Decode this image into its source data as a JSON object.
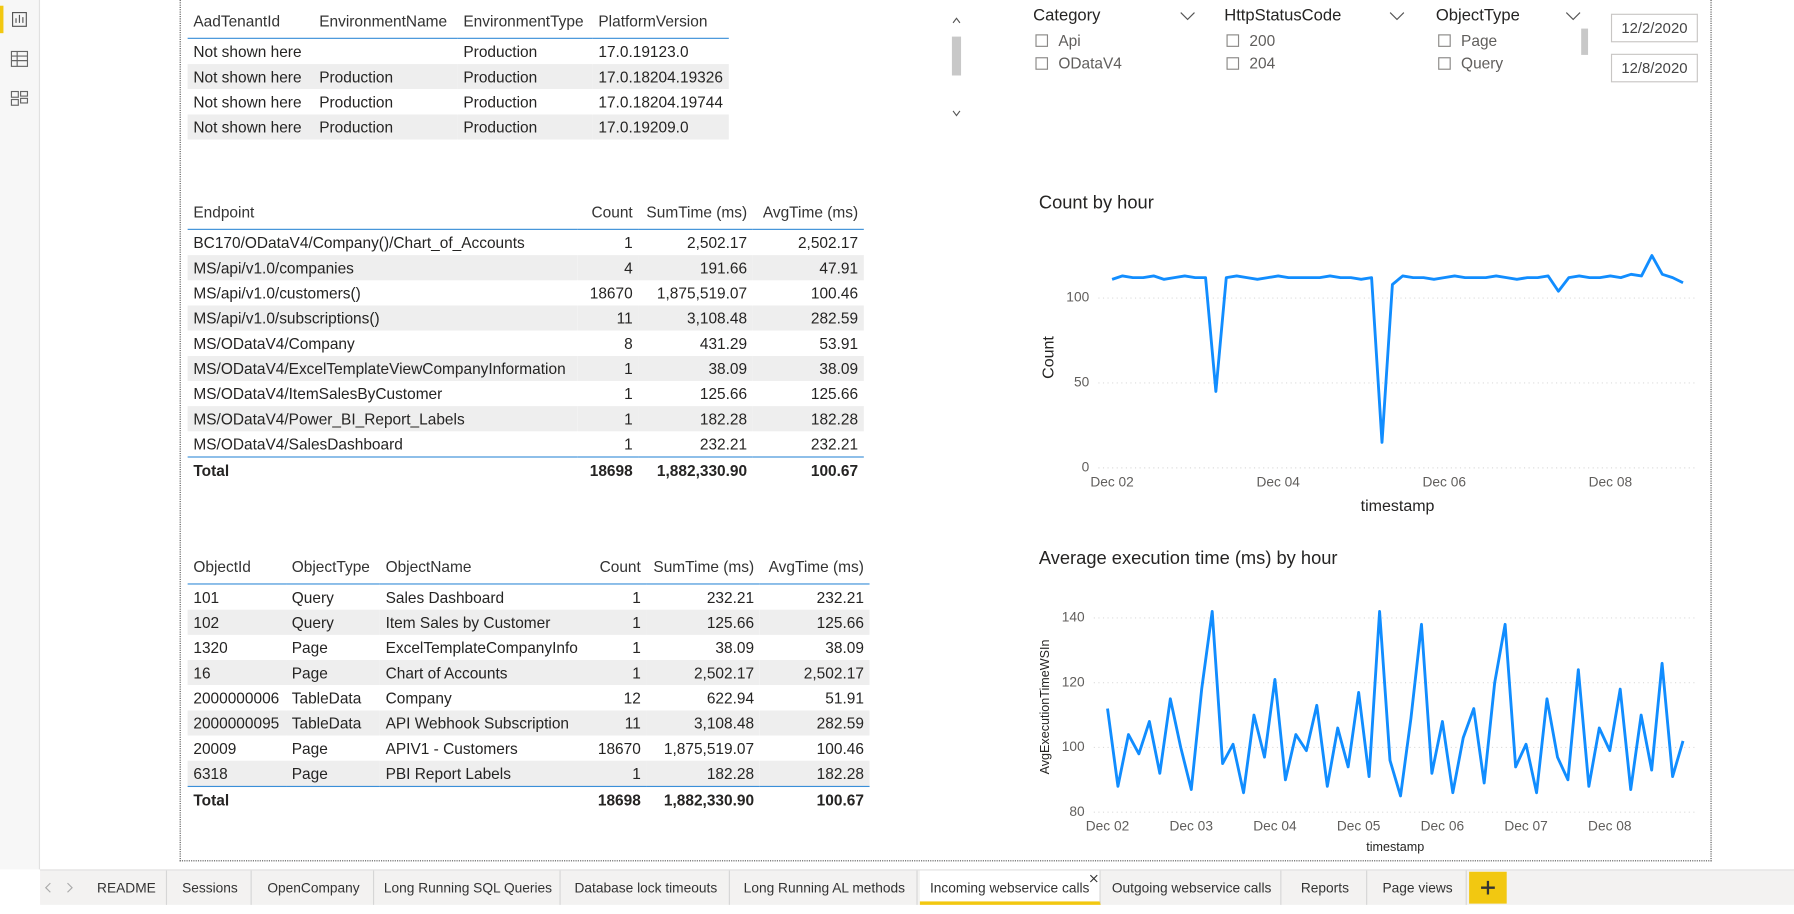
{
  "tables": [
    {
      "columns": [
        "AadTenantId",
        "EnvironmentName",
        "EnvironmentType",
        "PlatformVersion"
      ],
      "rows": [
        [
          "Not shown here",
          "",
          "Production",
          "17.0.19123.0"
        ],
        [
          "Not shown here",
          "Production",
          "Production",
          "17.0.18204.19326"
        ],
        [
          "Not shown here",
          "Production",
          "Production",
          "17.0.18204.19744"
        ],
        [
          "Not shown here",
          "Production",
          "Production",
          "17.0.19209.0"
        ]
      ]
    },
    {
      "columns": [
        "Endpoint",
        "Count",
        "SumTime (ms)",
        "AvgTime (ms)"
      ],
      "rows": [
        [
          "BC170/ODataV4/Company()/Chart_of_Accounts",
          "1",
          "2,502.17",
          "2,502.17"
        ],
        [
          "MS/api/v1.0/companies",
          "4",
          "191.66",
          "47.91"
        ],
        [
          "MS/api/v1.0/customers()",
          "18670",
          "1,875,519.07",
          "100.46"
        ],
        [
          "MS/api/v1.0/subscriptions()",
          "11",
          "3,108.48",
          "282.59"
        ],
        [
          "MS/ODataV4/Company",
          "8",
          "431.29",
          "53.91"
        ],
        [
          "MS/ODataV4/ExcelTemplateViewCompanyInformation",
          "1",
          "38.09",
          "38.09"
        ],
        [
          "MS/ODataV4/ItemSalesByCustomer",
          "1",
          "125.66",
          "125.66"
        ],
        [
          "MS/ODataV4/Power_BI_Report_Labels",
          "1",
          "182.28",
          "182.28"
        ],
        [
          "MS/ODataV4/SalesDashboard",
          "1",
          "232.21",
          "232.21"
        ]
      ],
      "total": [
        "Total",
        "18698",
        "1,882,330.90",
        "100.67"
      ]
    },
    {
      "columns": [
        "ObjectId",
        "ObjectType",
        "ObjectName",
        "Count",
        "SumTime (ms)",
        "AvgTime (ms)"
      ],
      "rows": [
        [
          "101",
          "Query",
          "Sales Dashboard",
          "1",
          "232.21",
          "232.21"
        ],
        [
          "102",
          "Query",
          "Item Sales by Customer",
          "1",
          "125.66",
          "125.66"
        ],
        [
          "1320",
          "Page",
          "ExcelTemplateCompanyInfo",
          "1",
          "38.09",
          "38.09"
        ],
        [
          "16",
          "Page",
          "Chart of Accounts",
          "1",
          "2,502.17",
          "2,502.17"
        ],
        [
          "2000000006",
          "TableData",
          "Company",
          "12",
          "622.94",
          "51.91"
        ],
        [
          "2000000095",
          "TableData",
          "API Webhook Subscription",
          "11",
          "3,108.48",
          "282.59"
        ],
        [
          "20009",
          "Page",
          "APIV1 - Customers",
          "18670",
          "1,875,519.07",
          "100.46"
        ],
        [
          "6318",
          "Page",
          "PBI Report Labels",
          "1",
          "182.28",
          "182.28"
        ]
      ],
      "total": [
        "Total",
        "",
        "",
        "18698",
        "1,882,330.90",
        "100.67"
      ]
    }
  ],
  "slicers": [
    {
      "title": "Category",
      "options": [
        "Api",
        "ODataV4"
      ]
    },
    {
      "title": "HttpStatusCode",
      "options": [
        "200",
        "204"
      ]
    },
    {
      "title": "ObjectType",
      "options": [
        "Page",
        "Query"
      ]
    }
  ],
  "date_range": [
    "12/2/2020",
    "12/8/2020"
  ],
  "chart_data": [
    {
      "type": "line",
      "title": "Count by hour",
      "x_label": "timestamp",
      "y_label": "Count",
      "color": "#118dff",
      "grid": true,
      "ylim": [
        0,
        130
      ],
      "yticks": [
        0,
        50,
        100
      ],
      "categories": [
        "Dec 02",
        null,
        null,
        null,
        null,
        null,
        null,
        null,
        null,
        null,
        null,
        null,
        null,
        null,
        null,
        null,
        "Dec 04",
        null,
        null,
        null,
        null,
        null,
        null,
        null,
        null,
        null,
        null,
        null,
        null,
        null,
        null,
        null,
        "Dec 06",
        null,
        null,
        null,
        null,
        null,
        null,
        null,
        null,
        null,
        null,
        null,
        null,
        null,
        null,
        null,
        "Dec 08",
        null,
        null,
        null,
        null,
        null,
        null,
        null
      ],
      "values": [
        111,
        113,
        112,
        112,
        113,
        111,
        112,
        113,
        112,
        112,
        45,
        112,
        113,
        112,
        111,
        112,
        113,
        112,
        112,
        112,
        112,
        113,
        112,
        112,
        111,
        112,
        15,
        108,
        113,
        112,
        112,
        111,
        112,
        113,
        112,
        112,
        112,
        113,
        112,
        111,
        112,
        112,
        113,
        104,
        112,
        113,
        112,
        112,
        113,
        112,
        114,
        113,
        125,
        114,
        112,
        109
      ]
    },
    {
      "type": "line",
      "title": "Average execution time (ms) by hour",
      "x_label": "timestamp",
      "y_label": "AvgExecutionTimeWSIn",
      "color": "#118dff",
      "grid": true,
      "ylim": [
        80,
        145
      ],
      "yticks": [
        80,
        100,
        120,
        140
      ],
      "categories": [
        "Dec 02",
        null,
        null,
        null,
        null,
        null,
        null,
        null,
        "Dec 03",
        null,
        null,
        null,
        null,
        null,
        null,
        null,
        "Dec 04",
        null,
        null,
        null,
        null,
        null,
        null,
        null,
        "Dec 05",
        null,
        null,
        null,
        null,
        null,
        null,
        null,
        "Dec 06",
        null,
        null,
        null,
        null,
        null,
        null,
        null,
        "Dec 07",
        null,
        null,
        null,
        null,
        null,
        null,
        null,
        "Dec 08",
        null,
        null,
        null,
        null,
        null,
        null,
        null
      ],
      "values": [
        112,
        88,
        104,
        98,
        108,
        92,
        115,
        100,
        87,
        118,
        142,
        95,
        101,
        86,
        110,
        97,
        121,
        90,
        104,
        99,
        113,
        88,
        106,
        94,
        117,
        91,
        142,
        96,
        85,
        109,
        138,
        92,
        108,
        86,
        103,
        112,
        89,
        120,
        138,
        94,
        101,
        86,
        115,
        97,
        90,
        124,
        88,
        106,
        99,
        118,
        87,
        110,
        93,
        126,
        91,
        102
      ]
    }
  ],
  "tabs": [
    {
      "label": "README"
    },
    {
      "label": "Sessions"
    },
    {
      "label": "OpenCompany"
    },
    {
      "label": "Long Running SQL Queries"
    },
    {
      "label": "Database lock timeouts"
    },
    {
      "label": "Long Running AL methods"
    },
    {
      "label": "Incoming webservice calls",
      "selected": true
    },
    {
      "label": "Outgoing webservice calls"
    },
    {
      "label": "Reports"
    },
    {
      "label": "Page views"
    }
  ]
}
